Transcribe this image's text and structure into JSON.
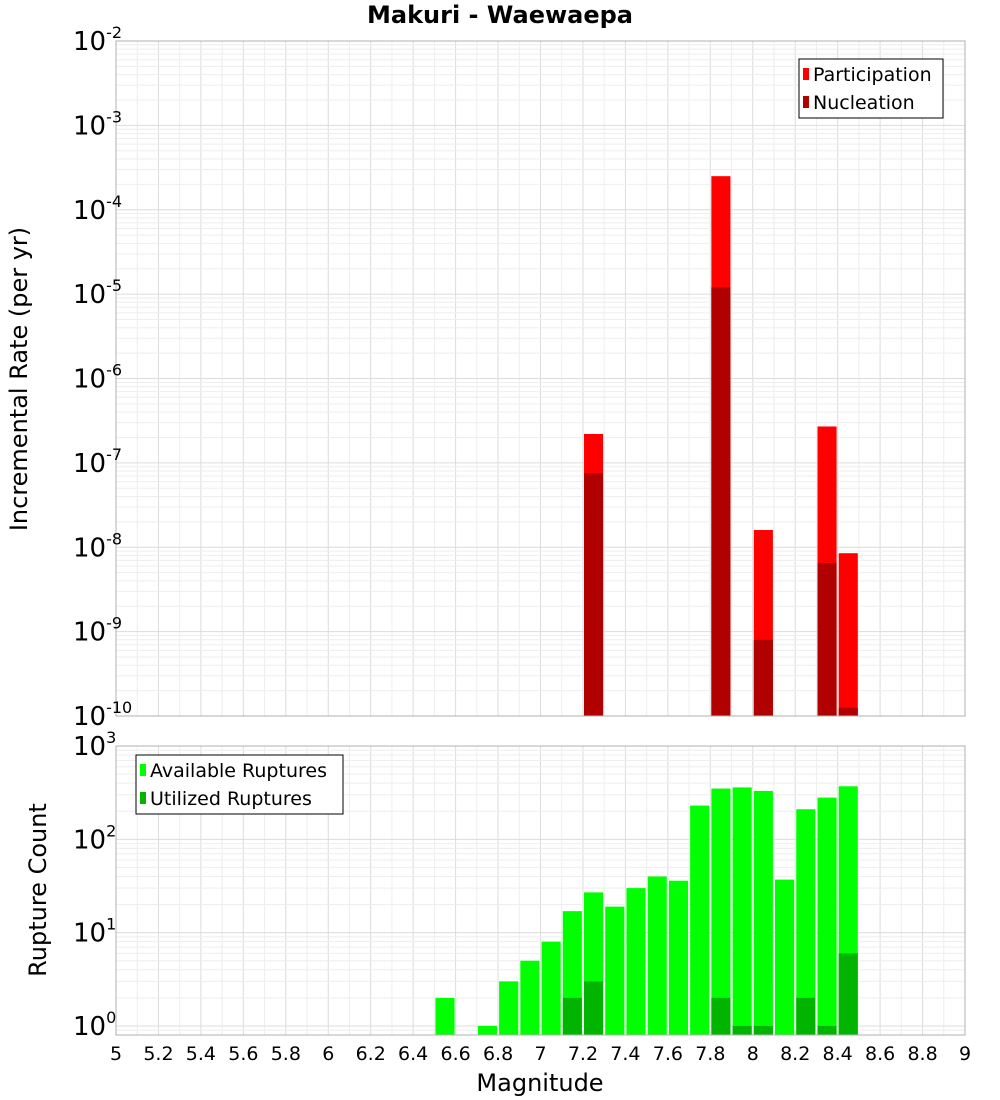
{
  "chart_data": [
    {
      "type": "bar",
      "title": "Makuri - Waewaepa",
      "xlabel": "",
      "ylabel": "Incremental Rate (per yr)",
      "yscale": "log",
      "ylim": [
        1e-10,
        0.01
      ],
      "xlim": [
        5,
        9
      ],
      "y_ticks": [
        {
          "base": "10",
          "exp": "-2",
          "value": 0.01
        },
        {
          "base": "10",
          "exp": "-3",
          "value": 0.001
        },
        {
          "base": "10",
          "exp": "-4",
          "value": 0.0001
        },
        {
          "base": "10",
          "exp": "-5",
          "value": 1e-05
        },
        {
          "base": "10",
          "exp": "-6",
          "value": 1e-06
        },
        {
          "base": "10",
          "exp": "-7",
          "value": 1e-07
        },
        {
          "base": "10",
          "exp": "-8",
          "value": 1e-08
        },
        {
          "base": "10",
          "exp": "-9",
          "value": 1e-09
        },
        {
          "base": "10",
          "exp": "-10",
          "value": 1e-10
        }
      ],
      "legend": {
        "position": "top-right"
      },
      "grid": true,
      "series": [
        {
          "name": "Participation",
          "color": "#ff0000",
          "x": [
            7.25,
            7.85,
            8.05,
            8.35,
            8.45
          ],
          "values": [
            2.2e-07,
            0.00025,
            1.6e-08,
            2.7e-07,
            8.5e-09
          ]
        },
        {
          "name": "Nucleation",
          "color": "#b00000",
          "x": [
            7.25,
            7.85,
            8.05,
            8.35,
            8.45
          ],
          "values": [
            7.5e-08,
            1.2e-05,
            8e-10,
            6.5e-09,
            1.25e-10
          ]
        }
      ]
    },
    {
      "type": "bar",
      "title": "",
      "xlabel": "Magnitude",
      "ylabel": "Rupture Count",
      "yscale": "log",
      "ylim": [
        0.8,
        1000
      ],
      "xlim": [
        5,
        9
      ],
      "y_ticks": [
        {
          "base": "10",
          "exp": "3",
          "value": 1000
        },
        {
          "base": "10",
          "exp": "2",
          "value": 100
        },
        {
          "base": "10",
          "exp": "1",
          "value": 10
        },
        {
          "base": "10",
          "exp": "0",
          "value": 1
        }
      ],
      "x_ticks": [
        "5",
        "5.2",
        "5.4",
        "5.6",
        "5.8",
        "6",
        "6.2",
        "6.4",
        "6.6",
        "6.8",
        "7",
        "7.2",
        "7.4",
        "7.6",
        "7.8",
        "8",
        "8.2",
        "8.4",
        "8.6",
        "8.8",
        "9"
      ],
      "legend": {
        "position": "top-left"
      },
      "grid": true,
      "series": [
        {
          "name": "Available Ruptures",
          "color": "#00ff00",
          "x": [
            6.55,
            6.75,
            6.85,
            6.95,
            7.05,
            7.15,
            7.25,
            7.35,
            7.45,
            7.55,
            7.65,
            7.75,
            7.85,
            7.95,
            8.05,
            8.15,
            8.25,
            8.35,
            8.45
          ],
          "values": [
            2,
            1,
            3,
            5,
            8,
            17,
            27,
            19,
            30,
            40,
            36,
            230,
            350,
            360,
            330,
            37,
            210,
            280,
            370
          ]
        },
        {
          "name": "Utilized Ruptures",
          "color": "#00b400",
          "x": [
            7.15,
            7.25,
            7.85,
            7.95,
            8.05,
            8.25,
            8.35,
            8.45
          ],
          "values": [
            2,
            3,
            2,
            1,
            1,
            2,
            1,
            6
          ]
        }
      ]
    }
  ]
}
